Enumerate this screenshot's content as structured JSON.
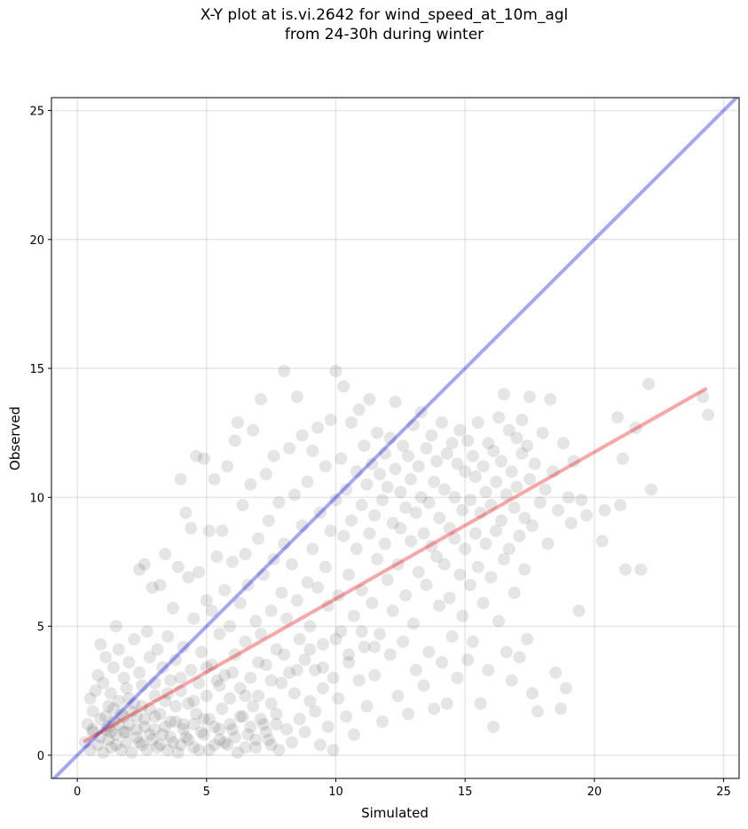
{
  "chart_data": {
    "type": "scatter",
    "title_line1": "X-Y plot at is.vi.2642 for wind_speed_at_10m_agl",
    "title_line2": "from 24-30h during winter",
    "xlabel": "Simulated",
    "ylabel": "Observed",
    "xlim": [
      -1,
      25.6
    ],
    "ylim": [
      -0.9,
      25.5
    ],
    "xticks": [
      0,
      5,
      10,
      15,
      20,
      25
    ],
    "yticks": [
      0,
      5,
      10,
      15,
      20,
      25
    ],
    "grid": true,
    "point_color": "#000000",
    "point_alpha": 0.1,
    "reference_lines": [
      {
        "kind": "one-to-one",
        "color": "#0000ee",
        "alpha": 0.35,
        "x": [
          -1,
          25.6
        ],
        "y": [
          -1,
          25.6
        ]
      },
      {
        "kind": "regression",
        "color": "#ee0000",
        "alpha": 0.35,
        "x": [
          0.3,
          24.3
        ],
        "y": [
          0.55,
          14.2
        ]
      }
    ],
    "points": [
      [
        0.3,
        0.5
      ],
      [
        0.4,
        1.2
      ],
      [
        0.5,
        2.2
      ],
      [
        0.5,
        0.2
      ],
      [
        0.6,
        1.7
      ],
      [
        0.6,
        0.9
      ],
      [
        0.7,
        2.5
      ],
      [
        0.8,
        0.4
      ],
      [
        0.8,
        3.1
      ],
      [
        0.9,
        1.4
      ],
      [
        0.9,
        4.3
      ],
      [
        1.0,
        0.1
      ],
      [
        1.0,
        2.8
      ],
      [
        1.1,
        1.0
      ],
      [
        1.1,
        3.8
      ],
      [
        1.2,
        0.6
      ],
      [
        1.2,
        1.9
      ],
      [
        1.3,
        2.4
      ],
      [
        1.3,
        0.3
      ],
      [
        1.4,
        3.4
      ],
      [
        1.4,
        1.3
      ],
      [
        1.5,
        5.0
      ],
      [
        1.5,
        0.8
      ],
      [
        1.6,
        2.1
      ],
      [
        1.6,
        4.1
      ],
      [
        1.7,
        0.2
      ],
      [
        1.7,
        1.6
      ],
      [
        1.8,
        3.0
      ],
      [
        1.8,
        0.9
      ],
      [
        1.9,
        2.6
      ],
      [
        1.9,
        0.5
      ],
      [
        2.0,
        1.2
      ],
      [
        2.0,
        3.6
      ],
      [
        2.1,
        0.1
      ],
      [
        2.2,
        2.0
      ],
      [
        2.2,
        4.5
      ],
      [
        2.3,
        0.7
      ],
      [
        2.3,
        1.5
      ],
      [
        2.4,
        3.2
      ],
      [
        2.4,
        7.2
      ],
      [
        2.5,
        0.4
      ],
      [
        2.5,
        2.7
      ],
      [
        2.6,
        1.1
      ],
      [
        2.6,
        7.4
      ],
      [
        2.7,
        0.2
      ],
      [
        2.7,
        4.8
      ],
      [
        2.8,
        1.8
      ],
      [
        2.8,
        3.8
      ],
      [
        2.9,
        0.6
      ],
      [
        2.9,
        6.5
      ],
      [
        3.0,
        2.3
      ],
      [
        3.0,
        1.0
      ],
      [
        3.1,
        4.1
      ],
      [
        3.1,
        0.3
      ],
      [
        3.2,
        6.6
      ],
      [
        3.2,
        1.6
      ],
      [
        3.3,
        3.4
      ],
      [
        3.3,
        0.8
      ],
      [
        3.4,
        2.1
      ],
      [
        3.4,
        7.8
      ],
      [
        3.5,
        0.2
      ],
      [
        3.5,
        4.6
      ],
      [
        3.6,
        1.3
      ],
      [
        3.6,
        2.9
      ],
      [
        3.7,
        5.7
      ],
      [
        3.7,
        0.5
      ],
      [
        3.8,
        1.9
      ],
      [
        3.8,
        3.7
      ],
      [
        3.9,
        7.3
      ],
      [
        3.9,
        0.1
      ],
      [
        4.0,
        2.5
      ],
      [
        4.0,
        10.7
      ],
      [
        4.1,
        1.2
      ],
      [
        4.1,
        4.2
      ],
      [
        4.2,
        9.4
      ],
      [
        4.2,
        0.7
      ],
      [
        4.3,
        6.9
      ],
      [
        4.3,
        2.0
      ],
      [
        4.4,
        3.3
      ],
      [
        4.4,
        8.8
      ],
      [
        4.5,
        0.3
      ],
      [
        4.5,
        5.3
      ],
      [
        4.6,
        1.6
      ],
      [
        4.6,
        11.6
      ],
      [
        4.7,
        2.8
      ],
      [
        4.7,
        7.1
      ],
      [
        4.8,
        0.9
      ],
      [
        4.8,
        4.0
      ],
      [
        4.9,
        11.5
      ],
      [
        4.9,
        1.4
      ],
      [
        5.0,
        6.0
      ],
      [
        5.0,
        2.3
      ],
      [
        5.1,
        8.7
      ],
      [
        5.1,
        0.2
      ],
      [
        5.2,
        3.5
      ],
      [
        5.2,
        5.6
      ],
      [
        5.3,
        1.1
      ],
      [
        5.3,
        10.7
      ],
      [
        5.4,
        2.9
      ],
      [
        5.4,
        7.7
      ],
      [
        5.5,
        0.6
      ],
      [
        5.5,
        4.7
      ],
      [
        5.6,
        8.7
      ],
      [
        5.6,
        1.8
      ],
      [
        5.7,
        6.4
      ],
      [
        5.7,
        3.1
      ],
      [
        5.8,
        11.2
      ],
      [
        5.8,
        0.4
      ],
      [
        5.9,
        5.0
      ],
      [
        5.9,
        2.2
      ],
      [
        6.0,
        7.5
      ],
      [
        6.0,
        1.0
      ],
      [
        6.1,
        12.2
      ],
      [
        6.1,
        3.9
      ],
      [
        6.2,
        12.9
      ],
      [
        6.2,
        0.1
      ],
      [
        6.3,
        5.9
      ],
      [
        6.3,
        2.6
      ],
      [
        6.4,
        9.7
      ],
      [
        6.4,
        1.5
      ],
      [
        6.5,
        7.8
      ],
      [
        6.5,
        4.4
      ],
      [
        6.6,
        0.8
      ],
      [
        6.6,
        6.6
      ],
      [
        6.7,
        3.0
      ],
      [
        6.7,
        10.5
      ],
      [
        6.8,
        1.9
      ],
      [
        6.8,
        12.6
      ],
      [
        6.9,
        5.2
      ],
      [
        6.9,
        0.3
      ],
      [
        7.0,
        8.4
      ],
      [
        7.0,
        2.3
      ],
      [
        7.1,
        13.8
      ],
      [
        7.1,
        4.7
      ],
      [
        7.2,
        1.2
      ],
      [
        7.2,
        7.0
      ],
      [
        7.3,
        10.9
      ],
      [
        7.3,
        3.5
      ],
      [
        7.4,
        0.6
      ],
      [
        7.4,
        9.1
      ],
      [
        7.5,
        5.6
      ],
      [
        7.5,
        2.0
      ],
      [
        7.6,
        11.6
      ],
      [
        7.6,
        7.6
      ],
      [
        7.7,
        1.6
      ],
      [
        7.7,
        4.1
      ],
      [
        7.8,
        9.8
      ],
      [
        7.8,
        0.2
      ],
      [
        7.9,
        6.3
      ],
      [
        7.9,
        2.8
      ],
      [
        8.0,
        14.9
      ],
      [
        8.0,
        8.2
      ],
      [
        8.1,
        1.0
      ],
      [
        8.1,
        5.3
      ],
      [
        8.2,
        11.9
      ],
      [
        8.2,
        3.2
      ],
      [
        8.3,
        7.4
      ],
      [
        8.3,
        0.5
      ],
      [
        8.4,
        10.1
      ],
      [
        8.4,
        2.4
      ],
      [
        8.5,
        13.9
      ],
      [
        8.5,
        6.0
      ],
      [
        8.6,
        4.5
      ],
      [
        8.6,
        1.4
      ],
      [
        8.7,
        8.9
      ],
      [
        8.7,
        12.4
      ],
      [
        8.8,
        3.7
      ],
      [
        8.8,
        0.9
      ],
      [
        8.9,
        6.7
      ],
      [
        8.9,
        10.6
      ],
      [
        9.0,
        2.1
      ],
      [
        9.0,
        5.0
      ],
      [
        9.1,
        11.8
      ],
      [
        9.1,
        8.0
      ],
      [
        9.2,
        1.7
      ],
      [
        9.2,
        3.3
      ],
      [
        9.3,
        12.7
      ],
      [
        9.3,
        6.5
      ],
      [
        9.4,
        0.4
      ],
      [
        9.4,
        9.4
      ],
      [
        9.5,
        4.3
      ],
      [
        9.5,
        2.6
      ],
      [
        9.6,
        11.2
      ],
      [
        9.6,
        7.3
      ],
      [
        9.7,
        1.1
      ],
      [
        9.7,
        5.8
      ],
      [
        9.8,
        13.0
      ],
      [
        9.8,
        8.7
      ],
      [
        9.9,
        3.0
      ],
      [
        9.9,
        0.2
      ],
      [
        10.0,
        14.9
      ],
      [
        10.0,
        9.9
      ],
      [
        10.1,
        6.2
      ],
      [
        10.1,
        2.2
      ],
      [
        10.2,
        11.5
      ],
      [
        10.2,
        4.8
      ],
      [
        10.3,
        8.5
      ],
      [
        10.3,
        14.3
      ],
      [
        10.4,
        1.5
      ],
      [
        10.4,
        10.3
      ],
      [
        10.5,
        7.0
      ],
      [
        10.5,
        3.6
      ],
      [
        10.6,
        12.9
      ],
      [
        10.6,
        9.1
      ],
      [
        10.7,
        5.4
      ],
      [
        10.7,
        0.8
      ],
      [
        10.8,
        11.0
      ],
      [
        10.8,
        8.0
      ],
      [
        10.9,
        2.9
      ],
      [
        10.9,
        13.4
      ],
      [
        11.0,
        9.7
      ],
      [
        11.0,
        6.4
      ],
      [
        11.1,
        4.2
      ],
      [
        11.1,
        12.0
      ],
      [
        11.2,
        10.5
      ],
      [
        11.2,
        1.9
      ],
      [
        11.3,
        8.6
      ],
      [
        11.3,
        13.8
      ],
      [
        11.4,
        5.9
      ],
      [
        11.4,
        11.3
      ],
      [
        11.5,
        3.1
      ],
      [
        11.5,
        9.3
      ],
      [
        11.6,
        7.6
      ],
      [
        11.6,
        12.5
      ],
      [
        11.7,
        10.9
      ],
      [
        11.7,
        4.7
      ],
      [
        11.8,
        1.3
      ],
      [
        11.8,
        9.9
      ],
      [
        11.9,
        8.2
      ],
      [
        11.9,
        11.7
      ],
      [
        12.0,
        6.8
      ],
      [
        12.0,
        10.4
      ],
      [
        12.1,
        12.3
      ],
      [
        12.1,
        3.9
      ],
      [
        12.2,
        9.0
      ],
      [
        12.2,
        5.6
      ],
      [
        12.3,
        11.1
      ],
      [
        12.3,
        13.7
      ],
      [
        12.4,
        7.4
      ],
      [
        12.4,
        2.3
      ],
      [
        12.5,
        10.2
      ],
      [
        12.5,
        8.8
      ],
      [
        12.6,
        12.0
      ],
      [
        12.6,
        4.4
      ],
      [
        12.7,
        9.6
      ],
      [
        12.7,
        6.2
      ],
      [
        12.8,
        11.6
      ],
      [
        12.8,
        1.6
      ],
      [
        12.9,
        10.7
      ],
      [
        12.9,
        8.3
      ],
      [
        13.0,
        12.8
      ],
      [
        13.0,
        5.1
      ],
      [
        13.1,
        9.4
      ],
      [
        13.1,
        3.3
      ],
      [
        13.2,
        11.2
      ],
      [
        13.2,
        7.1
      ],
      [
        13.3,
        10.0
      ],
      [
        13.3,
        13.3
      ],
      [
        13.4,
        8.6
      ],
      [
        13.4,
        2.7
      ],
      [
        13.5,
        11.9
      ],
      [
        13.5,
        6.6
      ],
      [
        13.6,
        9.8
      ],
      [
        13.6,
        4.0
      ],
      [
        13.7,
        12.4
      ],
      [
        13.7,
        8.1
      ],
      [
        13.8,
        10.6
      ],
      [
        13.8,
        1.8
      ],
      [
        13.9,
        7.7
      ],
      [
        13.9,
        11.4
      ],
      [
        14.0,
        5.8
      ],
      [
        14.0,
        9.2
      ],
      [
        14.1,
        12.9
      ],
      [
        14.1,
        3.6
      ],
      [
        14.2,
        10.3
      ],
      [
        14.2,
        7.4
      ],
      [
        14.3,
        11.7
      ],
      [
        14.3,
        2.0
      ],
      [
        14.4,
        8.8
      ],
      [
        14.4,
        6.1
      ],
      [
        14.5,
        12.1
      ],
      [
        14.5,
        4.6
      ],
      [
        14.6,
        10.0
      ],
      [
        14.6,
        8.4
      ],
      [
        14.7,
        11.3
      ],
      [
        14.7,
        3.0
      ],
      [
        14.8,
        7.0
      ],
      [
        14.8,
        12.6
      ],
      [
        14.9,
        9.5
      ],
      [
        14.9,
        5.4
      ],
      [
        15.0,
        11.0
      ],
      [
        15.0,
        8.0
      ],
      [
        15.1,
        3.7
      ],
      [
        15.1,
        12.2
      ],
      [
        15.2,
        9.9
      ],
      [
        15.2,
        6.6
      ],
      [
        15.3,
        11.6
      ],
      [
        15.3,
        4.4
      ],
      [
        15.4,
        8.6
      ],
      [
        15.4,
        10.8
      ],
      [
        15.5,
        12.9
      ],
      [
        15.5,
        7.3
      ],
      [
        15.6,
        2.0
      ],
      [
        15.6,
        9.4
      ],
      [
        15.7,
        11.2
      ],
      [
        15.7,
        5.9
      ],
      [
        15.8,
        10.2
      ],
      [
        15.8,
        8.2
      ],
      [
        15.9,
        12.1
      ],
      [
        15.9,
        3.3
      ],
      [
        16.0,
        9.7
      ],
      [
        16.0,
        6.9
      ],
      [
        16.1,
        11.8
      ],
      [
        16.1,
        1.1
      ],
      [
        16.2,
        10.6
      ],
      [
        16.2,
        8.7
      ],
      [
        16.3,
        13.1
      ],
      [
        16.3,
        5.2
      ],
      [
        16.4,
        9.1
      ],
      [
        16.4,
        11.4
      ],
      [
        16.5,
        7.6
      ],
      [
        16.5,
        14.0
      ],
      [
        16.6,
        10.1
      ],
      [
        16.6,
        4.0
      ],
      [
        16.7,
        12.6
      ],
      [
        16.7,
        8.0
      ],
      [
        16.8,
        11.0
      ],
      [
        16.8,
        2.9
      ],
      [
        16.9,
        9.6
      ],
      [
        16.9,
        6.3
      ],
      [
        17.0,
        12.3
      ],
      [
        17.0,
        10.4
      ],
      [
        17.1,
        8.5
      ],
      [
        17.1,
        3.8
      ],
      [
        17.2,
        11.7
      ],
      [
        17.2,
        13.0
      ],
      [
        17.3,
        9.2
      ],
      [
        17.3,
        7.2
      ],
      [
        17.4,
        12.0
      ],
      [
        17.4,
        4.5
      ],
      [
        17.5,
        10.7
      ],
      [
        17.5,
        13.9
      ],
      [
        17.6,
        8.9
      ],
      [
        17.6,
        2.4
      ],
      [
        17.7,
        11.3
      ],
      [
        17.8,
        1.7
      ],
      [
        17.9,
        9.8
      ],
      [
        18.0,
        12.5
      ],
      [
        18.1,
        10.3
      ],
      [
        18.2,
        8.2
      ],
      [
        18.3,
        13.8
      ],
      [
        18.4,
        11.0
      ],
      [
        18.5,
        3.2
      ],
      [
        18.6,
        9.5
      ],
      [
        18.7,
        1.8
      ],
      [
        18.8,
        12.1
      ],
      [
        18.9,
        2.6
      ],
      [
        19.0,
        10.0
      ],
      [
        19.1,
        9.0
      ],
      [
        19.2,
        11.4
      ],
      [
        19.4,
        5.6
      ],
      [
        19.5,
        9.9
      ],
      [
        19.7,
        9.3
      ],
      [
        20.3,
        8.3
      ],
      [
        20.4,
        9.5
      ],
      [
        20.9,
        13.1
      ],
      [
        21.0,
        9.7
      ],
      [
        21.1,
        11.5
      ],
      [
        21.2,
        7.2
      ],
      [
        21.6,
        12.7
      ],
      [
        21.8,
        7.2
      ],
      [
        22.1,
        14.4
      ],
      [
        22.2,
        10.3
      ],
      [
        24.2,
        13.9
      ],
      [
        24.4,
        13.2
      ],
      [
        0.6,
        1.0
      ],
      [
        0.9,
        0.7
      ],
      [
        1.1,
        1.5
      ],
      [
        1.2,
        1.1
      ],
      [
        1.3,
        0.9
      ],
      [
        1.4,
        1.8
      ],
      [
        1.5,
        0.4
      ],
      [
        1.6,
        1.2
      ],
      [
        1.8,
        1.5
      ],
      [
        1.9,
        0.9
      ],
      [
        2.1,
        1.7
      ],
      [
        2.3,
        1.0
      ],
      [
        2.4,
        0.5
      ],
      [
        2.6,
        1.4
      ],
      [
        2.8,
        0.8
      ],
      [
        3.0,
        1.5
      ],
      [
        3.2,
        0.4
      ],
      [
        3.4,
        1.1
      ],
      [
        3.6,
        0.7
      ],
      [
        3.8,
        1.3
      ],
      [
        4.0,
        0.4
      ],
      [
        4.1,
        1.0
      ],
      [
        4.3,
        0.6
      ],
      [
        4.5,
        1.2
      ],
      [
        4.7,
        0.2
      ],
      [
        4.9,
        0.8
      ],
      [
        5.1,
        1.4
      ],
      [
        5.3,
        0.4
      ],
      [
        5.5,
        1.0
      ],
      [
        5.7,
        0.5
      ],
      [
        5.9,
        1.2
      ],
      [
        6.1,
        0.7
      ],
      [
        6.3,
        1.5
      ],
      [
        6.5,
        0.3
      ],
      [
        6.7,
        1.1
      ],
      [
        6.9,
        0.6
      ],
      [
        7.1,
        1.4
      ],
      [
        7.3,
        0.9
      ],
      [
        7.5,
        0.4
      ],
      [
        7.7,
        1.2
      ],
      [
        2.0,
        2.2
      ],
      [
        2.5,
        1.9
      ],
      [
        3.0,
        2.8
      ],
      [
        3.5,
        2.4
      ],
      [
        4.0,
        3.0
      ],
      [
        4.5,
        2.1
      ],
      [
        5.0,
        3.4
      ],
      [
        5.5,
        2.7
      ],
      [
        6.0,
        3.2
      ],
      [
        6.5,
        2.3
      ],
      [
        7.0,
        3.6
      ],
      [
        7.5,
        2.9
      ],
      [
        8.0,
        3.9
      ],
      [
        8.5,
        3.3
      ],
      [
        9.0,
        4.1
      ],
      [
        9.5,
        3.4
      ],
      [
        10.0,
        4.5
      ],
      [
        10.5,
        3.9
      ],
      [
        11.0,
        4.8
      ],
      [
        11.5,
        4.2
      ]
    ]
  }
}
